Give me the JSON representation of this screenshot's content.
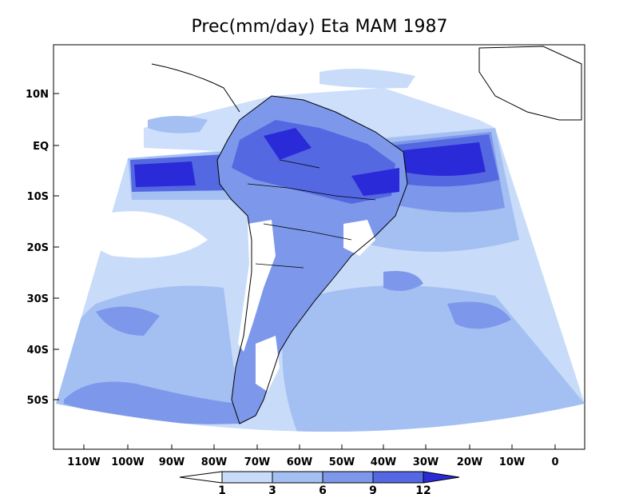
{
  "title": "Prec(mm/day) Eta MAM 1987",
  "y_ticks": [
    "10N",
    "EQ",
    "10S",
    "20S",
    "30S",
    "40S",
    "50S"
  ],
  "x_ticks": [
    "110W",
    "100W",
    "90W",
    "80W",
    "70W",
    "60W",
    "50W",
    "40W",
    "30W",
    "20W",
    "10W",
    "0"
  ],
  "colorbar": {
    "labels": [
      "1",
      "3",
      "6",
      "9",
      "12"
    ],
    "colors": [
      "#ffffff",
      "#c8dcfa",
      "#a4bff2",
      "#7d98ea",
      "#5468e2",
      "#2a2ad8"
    ]
  },
  "colors": {
    "land_white": "#ffffff",
    "level_1_3": "#c8dcfa",
    "level_3_6": "#a4bff2",
    "level_6_9": "#7d98ea",
    "level_9_12": "#5468e2",
    "level_12_plus": "#2a2ad8",
    "border": "#000000"
  }
}
